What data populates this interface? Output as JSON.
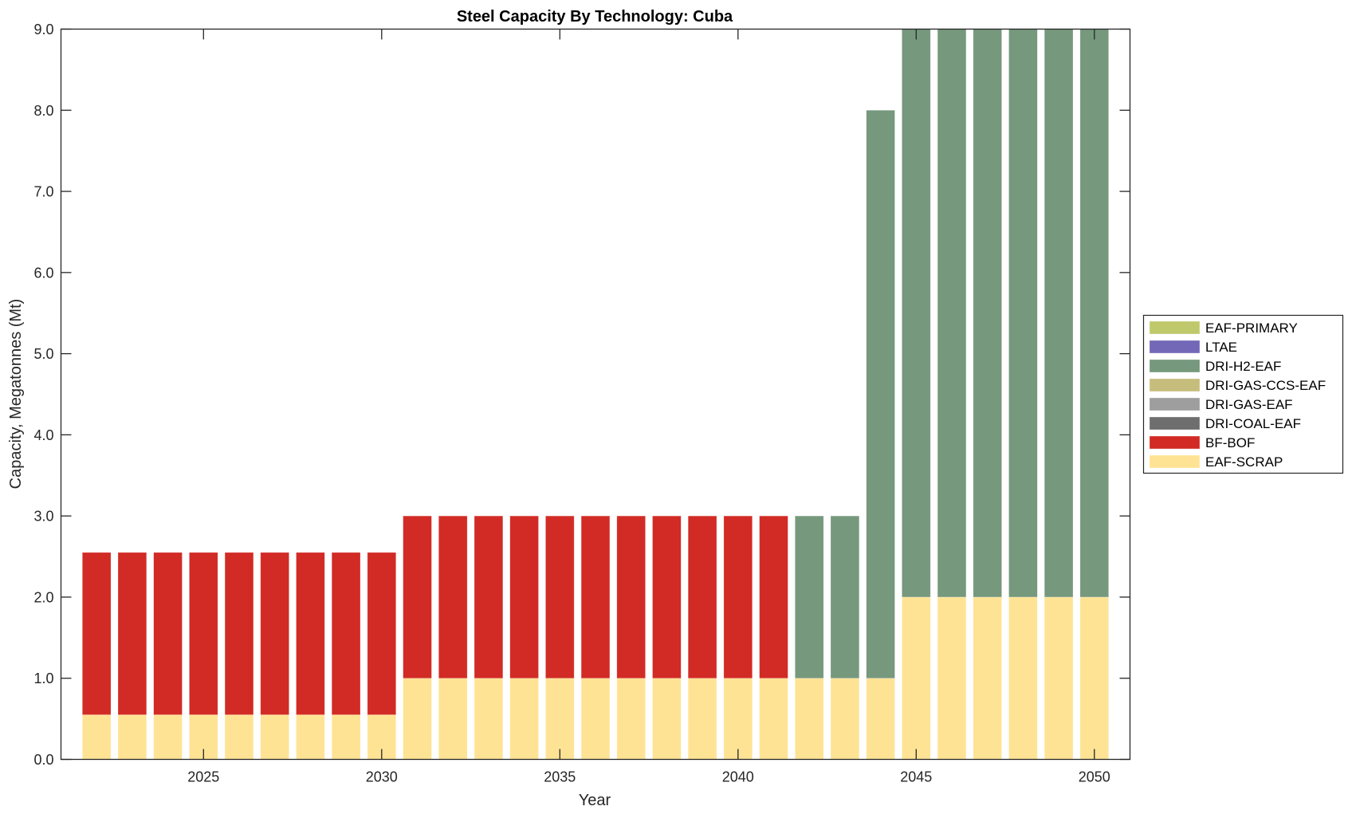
{
  "chart_data": {
    "type": "bar",
    "stacked": true,
    "title": "Steel Capacity By Technology: Cuba",
    "xlabel": "Year",
    "ylabel": "Capacity, Megatonnes (Mt)",
    "xlim": [
      2021,
      2051
    ],
    "ylim": [
      0,
      9
    ],
    "xticks": [
      2025,
      2030,
      2035,
      2040,
      2045,
      2050
    ],
    "xtick_labels": [
      "2025",
      "2030",
      "2035",
      "2040",
      "2045",
      "2050"
    ],
    "yticks": [
      0,
      1,
      2,
      3,
      4,
      5,
      6,
      7,
      8,
      9
    ],
    "ytick_labels": [
      "0.0",
      "1.0",
      "2.0",
      "3.0",
      "4.0",
      "5.0",
      "6.0",
      "7.0",
      "8.0",
      "9.0"
    ],
    "grid": false,
    "legend_position": "outside-right",
    "categories": [
      2022,
      2023,
      2024,
      2025,
      2026,
      2027,
      2028,
      2029,
      2030,
      2031,
      2032,
      2033,
      2034,
      2035,
      2036,
      2037,
      2038,
      2039,
      2040,
      2041,
      2042,
      2043,
      2044,
      2045,
      2046,
      2047,
      2048,
      2049,
      2050
    ],
    "series": [
      {
        "name": "EAF-SCRAP",
        "color": "#FFE394",
        "values": [
          0.55,
          0.55,
          0.55,
          0.55,
          0.55,
          0.55,
          0.55,
          0.55,
          0.55,
          1,
          1,
          1,
          1,
          1,
          1,
          1,
          1,
          1,
          1,
          1,
          1,
          1,
          1,
          2,
          2,
          2,
          2,
          2,
          2
        ]
      },
      {
        "name": "BF-BOF",
        "color": "#D22B25",
        "values": [
          2,
          2,
          2,
          2,
          2,
          2,
          2,
          2,
          2,
          2,
          2,
          2,
          2,
          2,
          2,
          2,
          2,
          2,
          2,
          2,
          0,
          0,
          0,
          0,
          0,
          0,
          0,
          0,
          0
        ]
      },
      {
        "name": "DRI-COAL-EAF",
        "color": "#6E6E6E",
        "values": [
          0,
          0,
          0,
          0,
          0,
          0,
          0,
          0,
          0,
          0,
          0,
          0,
          0,
          0,
          0,
          0,
          0,
          0,
          0,
          0,
          0,
          0,
          0,
          0,
          0,
          0,
          0,
          0,
          0
        ]
      },
      {
        "name": "DRI-GAS-EAF",
        "color": "#9E9E9E",
        "values": [
          0,
          0,
          0,
          0,
          0,
          0,
          0,
          0,
          0,
          0,
          0,
          0,
          0,
          0,
          0,
          0,
          0,
          0,
          0,
          0,
          0,
          0,
          0,
          0,
          0,
          0,
          0,
          0,
          0
        ]
      },
      {
        "name": "DRI-GAS-CCS-EAF",
        "color": "#C6BC7C",
        "values": [
          0,
          0,
          0,
          0,
          0,
          0,
          0,
          0,
          0,
          0,
          0,
          0,
          0,
          0,
          0,
          0,
          0,
          0,
          0,
          0,
          0,
          0,
          0,
          0,
          0,
          0,
          0,
          0,
          0
        ]
      },
      {
        "name": "DRI-H2-EAF",
        "color": "#76987D",
        "values": [
          0,
          0,
          0,
          0,
          0,
          0,
          0,
          0,
          0,
          0,
          0,
          0,
          0,
          0,
          0,
          0,
          0,
          0,
          0,
          0,
          2,
          2,
          7,
          7,
          7,
          7,
          7,
          7,
          7
        ]
      },
      {
        "name": "LTAE",
        "color": "#7368B7",
        "values": [
          0,
          0,
          0,
          0,
          0,
          0,
          0,
          0,
          0,
          0,
          0,
          0,
          0,
          0,
          0,
          0,
          0,
          0,
          0,
          0,
          0,
          0,
          0,
          0,
          0,
          0,
          0,
          0,
          0
        ]
      },
      {
        "name": "EAF-PRIMARY",
        "color": "#BFC96C",
        "values": [
          0,
          0,
          0,
          0,
          0,
          0,
          0,
          0,
          0,
          0,
          0,
          0,
          0,
          0,
          0,
          0,
          0,
          0,
          0,
          0,
          0,
          0,
          0,
          0,
          0,
          0,
          0,
          0,
          0
        ]
      }
    ],
    "legend_order": [
      "EAF-PRIMARY",
      "LTAE",
      "DRI-H2-EAF",
      "DRI-GAS-CCS-EAF",
      "DRI-GAS-EAF",
      "DRI-COAL-EAF",
      "BF-BOF",
      "EAF-SCRAP"
    ]
  }
}
